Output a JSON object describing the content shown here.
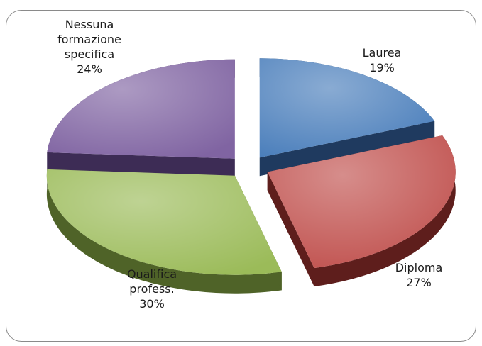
{
  "chart_data": {
    "type": "pie",
    "title": "",
    "categories": [
      "Laurea",
      "Diploma",
      "Qualifica profess.",
      "Nessuna formazione specifica"
    ],
    "values": [
      19,
      27,
      30,
      24
    ],
    "unit": "%",
    "exploded": true,
    "three_d": true,
    "legend": "none",
    "slices": [
      {
        "name": "Laurea",
        "label_lines": [
          "Laurea",
          "19%"
        ],
        "value": 19,
        "color": "#4a7ebb",
        "dark": "#1f3a5f"
      },
      {
        "name": "Diploma",
        "label_lines": [
          "Diploma",
          "27%"
        ],
        "value": 27,
        "color": "#c0504d",
        "dark": "#5e1e1c"
      },
      {
        "name": "Qualifica profess.",
        "label_lines": [
          "Qualifica",
          "profess.",
          "30%"
        ],
        "value": 30,
        "color": "#9bbb59",
        "dark": "#4f6328"
      },
      {
        "name": "Nessuna formazione specifica",
        "label_lines": [
          "Nessuna",
          "formazione",
          "specifica",
          "24%"
        ],
        "value": 24,
        "color": "#8064a2",
        "dark": "#3d2c55"
      }
    ]
  }
}
